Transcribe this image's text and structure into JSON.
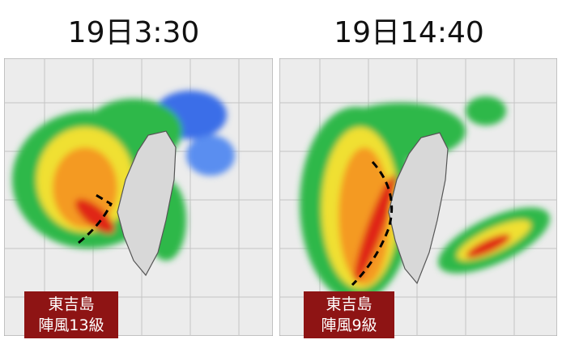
{
  "panels": [
    {
      "title": "19日3:30",
      "label": [
        "東吉島",
        "陣風13級"
      ]
    },
    {
      "title": "19日14:40",
      "label": [
        "東吉島",
        "陣風9級"
      ]
    }
  ]
}
